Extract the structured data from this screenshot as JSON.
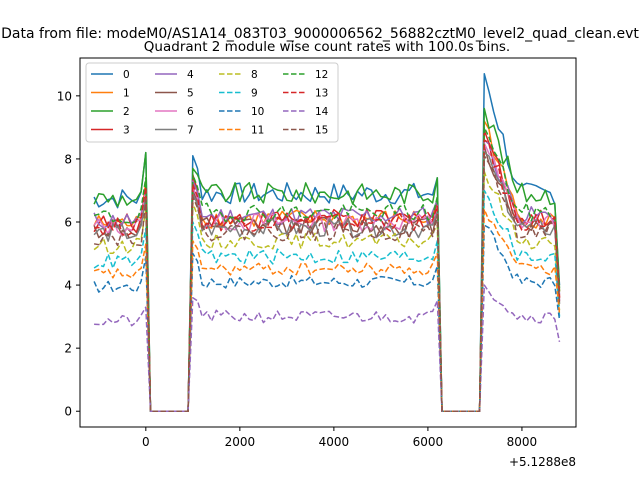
{
  "suptitle": "Data from file: modeM0/AS1A14_083T03_9000006562_56882cztM0_level2_quad_clean.evt",
  "chart_data": {
    "type": "line",
    "title": "Quadrant 2 module wise count rates with 100.0s bins.",
    "xlabel": "",
    "ylabel": "",
    "x_offset_label": "+5.1288e8",
    "x_offset": 512880000,
    "xlim": [
      -1400,
      9150
    ],
    "ylim": [
      -0.5,
      11.2
    ],
    "xticks": [
      0,
      2000,
      4000,
      6000,
      8000
    ],
    "yticks": [
      0,
      2,
      4,
      6,
      8,
      10
    ],
    "grid": false,
    "legend": {
      "position": "top-left",
      "columns": 4
    },
    "segments": [
      {
        "x_start": -1100,
        "x_end": 0,
        "gaps_after": [
          100,
          200,
          300,
          400,
          500,
          600,
          700,
          800,
          900
        ]
      },
      {
        "x_start": 1000,
        "x_end": 6200,
        "gaps_after": [
          6300,
          6400,
          6500,
          6600,
          6700,
          6800,
          6900,
          7000,
          7100
        ]
      },
      {
        "x_start": 7200,
        "x_end": 8800
      }
    ],
    "series": [
      {
        "name": "0",
        "color": "#1f77b4",
        "dash": "solid",
        "level": 6.9,
        "noise": 0.35,
        "peak0": 8.2,
        "peak1": 8.1,
        "peak2": 10.7,
        "end": 4.0,
        "zero_level": 0
      },
      {
        "name": "1",
        "color": "#ff7f0e",
        "dash": "solid",
        "level": 6.1,
        "noise": 0.3,
        "peak0": 7.3,
        "peak1": 7.4,
        "peak2": 9.2,
        "end": 3.8,
        "zero_level": 0
      },
      {
        "name": "2",
        "color": "#2ca02c",
        "dash": "solid",
        "level": 6.9,
        "noise": 0.35,
        "peak0": 8.2,
        "peak1": 7.7,
        "peak2": 9.6,
        "end": 3.9,
        "zero_level": 0
      },
      {
        "name": "3",
        "color": "#d62728",
        "dash": "solid",
        "level": 6.1,
        "noise": 0.3,
        "peak0": 7.1,
        "peak1": 7.5,
        "peak2": 8.9,
        "end": 3.6,
        "zero_level": 0
      },
      {
        "name": "4",
        "color": "#9467bd",
        "dash": "solid",
        "level": 6.2,
        "noise": 0.3,
        "peak0": 7.0,
        "peak1": 7.3,
        "peak2": 8.6,
        "end": 3.7,
        "zero_level": 0
      },
      {
        "name": "5",
        "color": "#8c564b",
        "dash": "solid",
        "level": 5.9,
        "noise": 0.3,
        "peak0": 6.9,
        "peak1": 7.0,
        "peak2": 8.4,
        "end": 3.5,
        "zero_level": 0
      },
      {
        "name": "6",
        "color": "#e377c2",
        "dash": "solid",
        "level": 6.0,
        "noise": 0.3,
        "peak0": 7.0,
        "peak1": 7.1,
        "peak2": 8.5,
        "end": 3.5,
        "zero_level": 0
      },
      {
        "name": "7",
        "color": "#7f7f7f",
        "dash": "solid",
        "level": 5.8,
        "noise": 0.3,
        "peak0": 6.8,
        "peak1": 6.9,
        "peak2": 8.2,
        "end": 3.4,
        "zero_level": 0
      },
      {
        "name": "8",
        "color": "#bcbd22",
        "dash": "dashed",
        "level": 5.4,
        "noise": 0.25,
        "peak0": 6.4,
        "peak1": 6.6,
        "peak2": 7.6,
        "end": 3.2,
        "zero_level": 0
      },
      {
        "name": "9",
        "color": "#17becf",
        "dash": "dashed",
        "level": 4.9,
        "noise": 0.25,
        "peak0": 5.8,
        "peak1": 6.0,
        "peak2": 7.0,
        "end": 3.0,
        "zero_level": 0
      },
      {
        "name": "10",
        "color": "#1f77b4",
        "dash": "dashed",
        "level": 4.1,
        "noise": 0.2,
        "peak0": 4.9,
        "peak1": 5.0,
        "peak2": 5.9,
        "end": 2.9,
        "zero_level": 0
      },
      {
        "name": "11",
        "color": "#ff7f0e",
        "dash": "dashed",
        "level": 4.5,
        "noise": 0.2,
        "peak0": 5.3,
        "peak1": 5.4,
        "peak2": 6.4,
        "end": 3.1,
        "zero_level": 0
      },
      {
        "name": "12",
        "color": "#2ca02c",
        "dash": "dashed",
        "level": 6.3,
        "noise": 0.3,
        "peak0": 7.4,
        "peak1": 7.5,
        "peak2": 9.0,
        "end": 3.8,
        "zero_level": 0
      },
      {
        "name": "13",
        "color": "#d62728",
        "dash": "dashed",
        "level": 6.0,
        "noise": 0.3,
        "peak0": 7.1,
        "peak1": 7.2,
        "peak2": 8.6,
        "end": 3.6,
        "zero_level": 0
      },
      {
        "name": "14",
        "color": "#9467bd",
        "dash": "dashed",
        "level": 3.0,
        "noise": 0.2,
        "peak0": 3.3,
        "peak1": 3.6,
        "peak2": 4.0,
        "end": 2.2,
        "zero_level": 0
      },
      {
        "name": "15",
        "color": "#8c564b",
        "dash": "dashed",
        "level": 5.7,
        "noise": 0.3,
        "peak0": 6.7,
        "peak1": 6.8,
        "peak2": 8.1,
        "end": 3.4,
        "zero_level": 0
      }
    ]
  }
}
